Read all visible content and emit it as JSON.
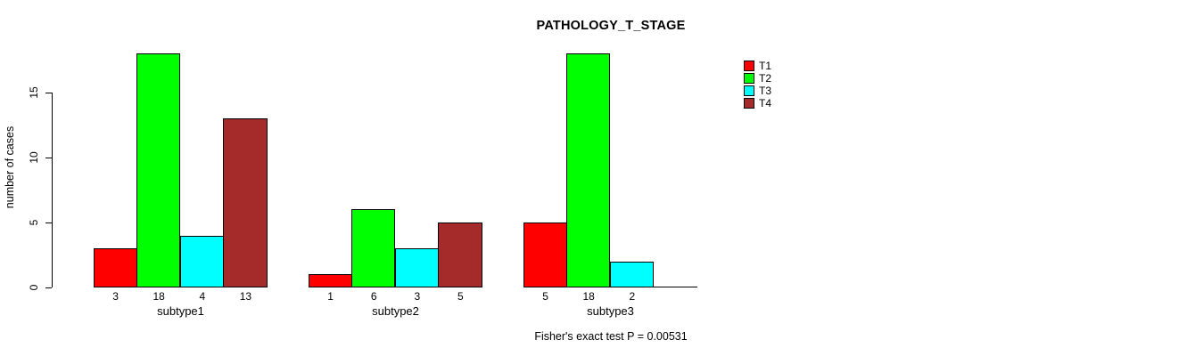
{
  "chart_data": {
    "type": "bar",
    "title": "PATHOLOGY_T_STAGE",
    "ylabel": "number of cases",
    "xlabel": "",
    "categories": [
      "subtype1",
      "subtype2",
      "subtype3"
    ],
    "series": [
      {
        "name": "T1",
        "color": "#FF0000",
        "values": [
          3,
          1,
          5
        ]
      },
      {
        "name": "T2",
        "color": "#00FF00",
        "values": [
          18,
          6,
          18
        ]
      },
      {
        "name": "T3",
        "color": "#00FFFF",
        "values": [
          4,
          3,
          2
        ]
      },
      {
        "name": "T4",
        "color": "#A52A2A",
        "values": [
          13,
          5,
          0
        ]
      }
    ],
    "bar_value_labels": [
      [
        "3",
        "18",
        "4",
        "13"
      ],
      [
        "1",
        "6",
        "3",
        "5"
      ],
      [
        "5",
        "18",
        "2",
        ""
      ]
    ],
    "yticks": [
      0,
      5,
      10,
      15
    ],
    "ylim": [
      0,
      18
    ],
    "grid": false,
    "legend_position": "right",
    "legend_labels": [
      "T1",
      "T2",
      "T3",
      "T4"
    ],
    "annotation": "Fisher's exact test P = 0.00531",
    "bar_border_color": "#000000",
    "background_color": "#FFFFFF"
  }
}
